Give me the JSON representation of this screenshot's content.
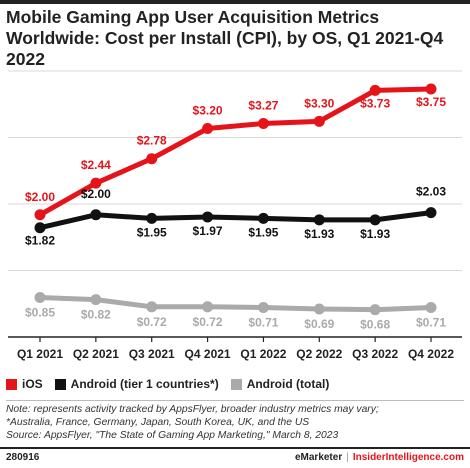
{
  "title": "Mobile Gaming App User Acquisition Metrics Worldwide: Cost per Install (CPI), by OS, Q1 2021-Q4 2022",
  "colors": {
    "ios": "#e5141b",
    "android_tier1": "#111111",
    "android_total": "#aaaaaa",
    "grid": "#d9d9d9"
  },
  "chart_data": {
    "type": "line",
    "categories": [
      "Q1 2021",
      "Q2 2021",
      "Q3 2021",
      "Q4 2021",
      "Q1 2022",
      "Q2 2022",
      "Q3 2022",
      "Q4 2022"
    ],
    "series": [
      {
        "name": "iOS",
        "values": [
          2.0,
          2.44,
          2.78,
          3.2,
          3.27,
          3.3,
          3.73,
          3.75
        ],
        "labels": [
          "$2.00",
          "$2.44",
          "$2.78",
          "$3.20",
          "$3.27",
          "$3.30",
          "$3.73",
          "$3.75"
        ]
      },
      {
        "name": "Android (tier 1 countries*)",
        "values": [
          1.82,
          2.0,
          1.95,
          1.97,
          1.95,
          1.93,
          1.93,
          2.03
        ],
        "labels": [
          "$1.82",
          "$2.00",
          "$1.95",
          "$1.97",
          "$1.95",
          "$1.93",
          "$1.93",
          "$2.03"
        ]
      },
      {
        "name": "Android (total)",
        "values": [
          0.85,
          0.82,
          0.72,
          0.72,
          0.71,
          0.69,
          0.68,
          0.71
        ],
        "labels": [
          "$0.85",
          "$0.82",
          "$0.72",
          "$0.72",
          "$0.71",
          "$0.69",
          "$0.68",
          "$0.71"
        ]
      }
    ],
    "ylim": [
      0.3,
      4.0
    ],
    "grid": true,
    "legend_position": "bottom-left"
  },
  "legend": {
    "ios": "iOS",
    "android_tier1": "Android (tier 1 countries*)",
    "android_total": "Android (total)"
  },
  "notes": [
    "Note: represents activity tracked by AppsFlyer, broader industry metrics may vary;",
    "*Australia, France, Germany, Japan, South Korea, UK, and the US",
    "Source: AppsFlyer, \"The State of Gaming App Marketing,\" March 8, 2023"
  ],
  "footer": {
    "id": "280916",
    "brand_a": "eMarketer",
    "separator": "|",
    "brand_b": "InsiderIntelligence.com"
  }
}
